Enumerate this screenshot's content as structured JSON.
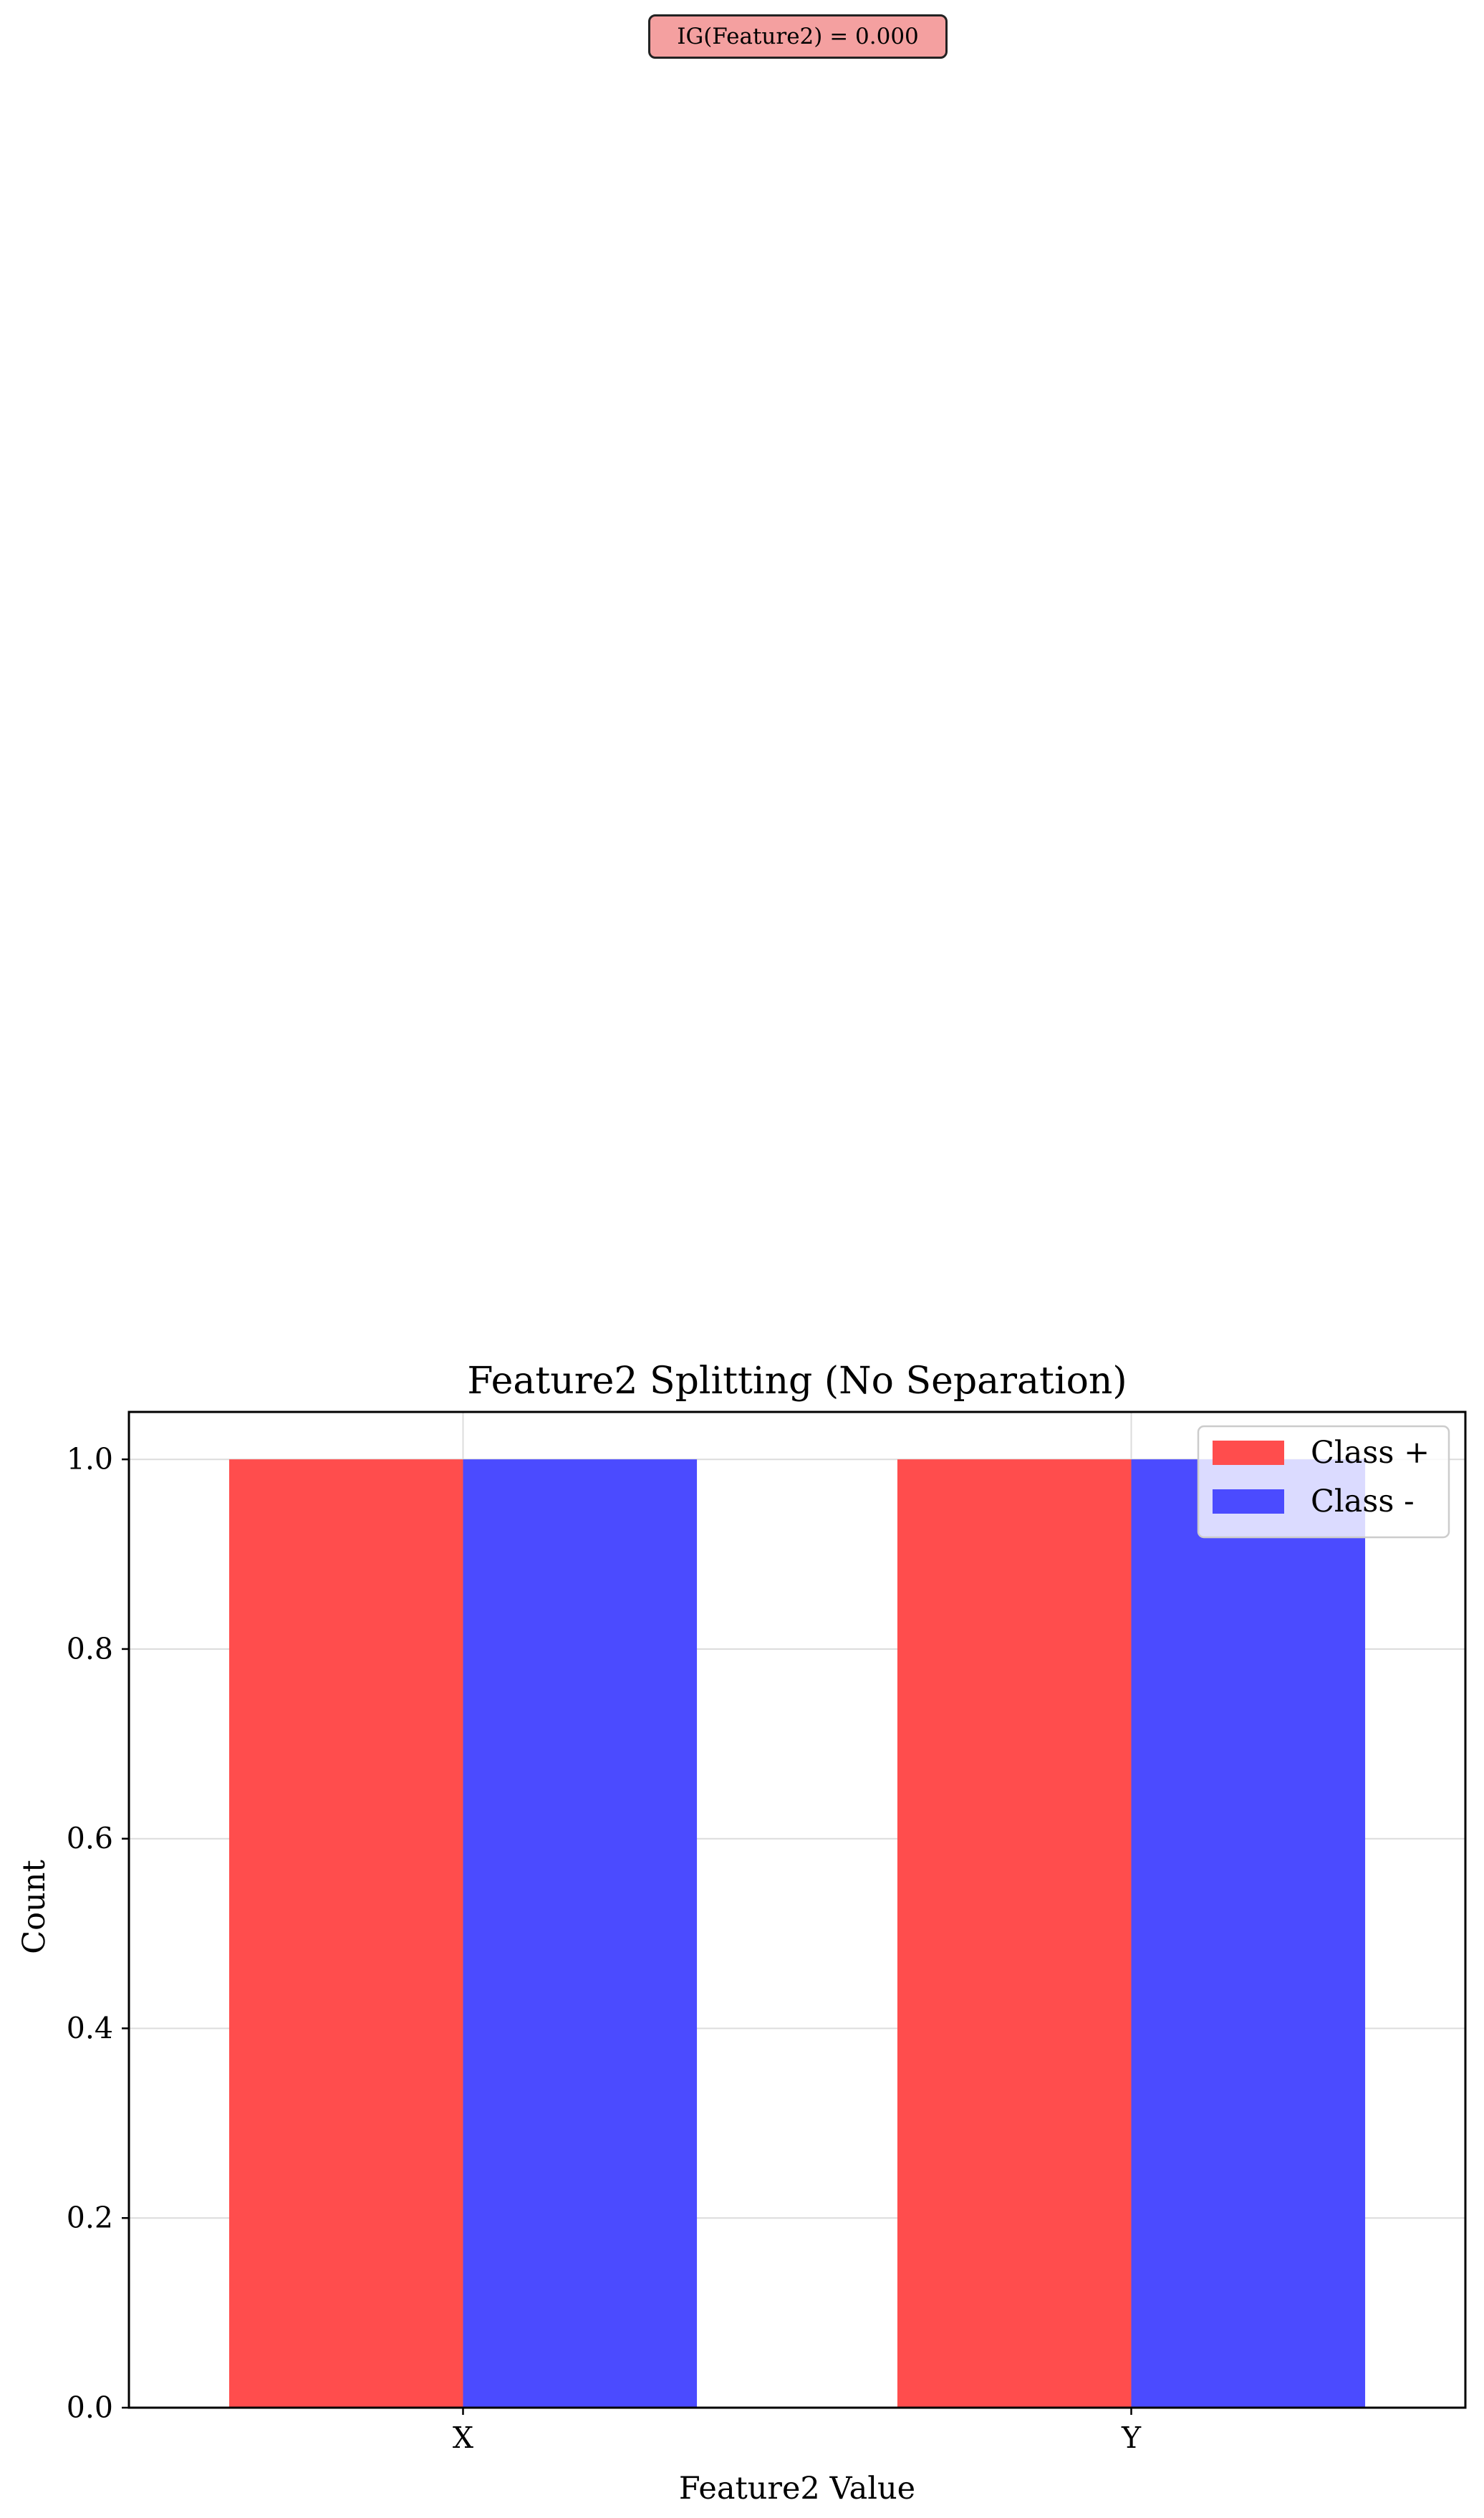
{
  "annotation": {
    "text": "IG(Feature2) = 0.000",
    "background": "#f4a0a0"
  },
  "chart_data": {
    "type": "bar",
    "title": "Feature2 Splitting (No Separation)",
    "xlabel": "Feature2 Value",
    "ylabel": "Count",
    "categories": [
      "X",
      "Y"
    ],
    "series": [
      {
        "name": "Class +",
        "values": [
          1,
          1
        ],
        "color": "#ff4d4d"
      },
      {
        "name": "Class -",
        "values": [
          1,
          1
        ],
        "color": "#4b4bff"
      }
    ],
    "ylim": [
      0,
      1.05
    ],
    "yticks": [
      0.0,
      0.2,
      0.4,
      0.6,
      0.8,
      1.0
    ],
    "ytick_labels": [
      "0.0",
      "0.2",
      "0.4",
      "0.6",
      "0.8",
      "1.0"
    ],
    "grid": true,
    "legend_position": "top-right"
  }
}
